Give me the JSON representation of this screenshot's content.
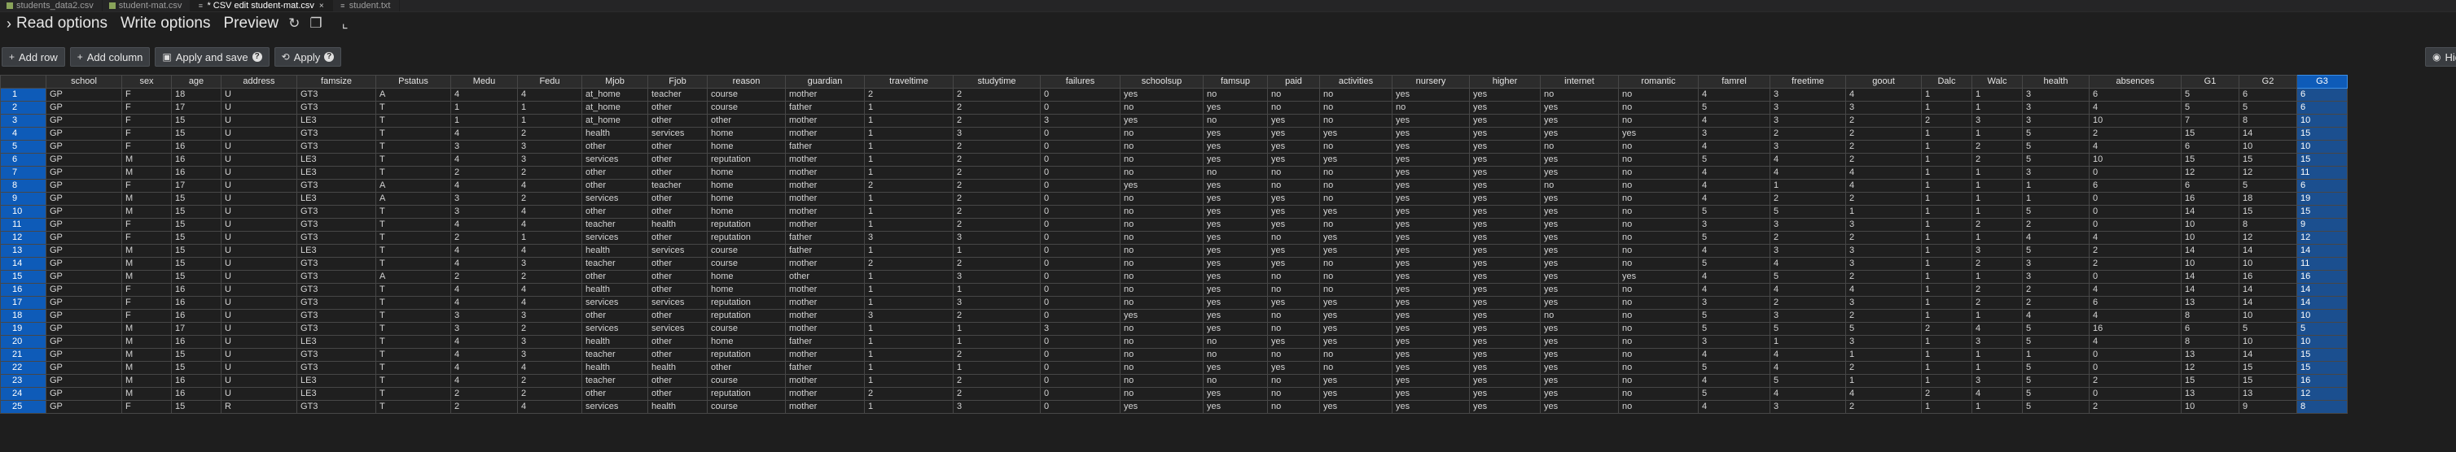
{
  "tabs": [
    {
      "label": "students_data2.csv",
      "icon": "csv-file-icon",
      "active": false
    },
    {
      "label": "student-mat.csv",
      "icon": "csv-file-icon",
      "active": false
    },
    {
      "label": "* CSV edit student-mat.csv",
      "icon": "lines-file-icon",
      "active": true,
      "close": "×"
    },
    {
      "label": "student.txt",
      "icon": "lines-file-icon",
      "active": false
    }
  ],
  "options": {
    "read": "Read options",
    "write": "Write options",
    "preview": "Preview",
    "chevron": "›"
  },
  "toolbar": {
    "add_row": "Add row",
    "add_column": "Add column",
    "apply_and_save": "Apply and save",
    "apply": "Apply",
    "hide": "Hid"
  },
  "grid": {
    "selected_column": "G3",
    "columns": [
      "school",
      "sex",
      "age",
      "address",
      "famsize",
      "Pstatus",
      "Medu",
      "Fedu",
      "Mjob",
      "Fjob",
      "reason",
      "guardian",
      "traveltime",
      "studytime",
      "failures",
      "schoolsup",
      "famsup",
      "paid",
      "activities",
      "nursery",
      "higher",
      "internet",
      "romantic",
      "famrel",
      "freetime",
      "goout",
      "Dalc",
      "Walc",
      "health",
      "absences",
      "G1",
      "G2",
      "G3"
    ],
    "rows": [
      [
        "1",
        "GP",
        "F",
        "18",
        "U",
        "GT3",
        "A",
        "4",
        "4",
        "at_home",
        "teacher",
        "course",
        "mother",
        "2",
        "2",
        "0",
        "yes",
        "no",
        "no",
        "no",
        "yes",
        "yes",
        "no",
        "no",
        "4",
        "3",
        "4",
        "1",
        "1",
        "3",
        "6",
        "5",
        "6",
        "6"
      ],
      [
        "2",
        "GP",
        "F",
        "17",
        "U",
        "GT3",
        "T",
        "1",
        "1",
        "at_home",
        "other",
        "course",
        "father",
        "1",
        "2",
        "0",
        "no",
        "yes",
        "no",
        "no",
        "no",
        "yes",
        "yes",
        "no",
        "5",
        "3",
        "3",
        "1",
        "1",
        "3",
        "4",
        "5",
        "5",
        "6"
      ],
      [
        "3",
        "GP",
        "F",
        "15",
        "U",
        "LE3",
        "T",
        "1",
        "1",
        "at_home",
        "other",
        "other",
        "mother",
        "1",
        "2",
        "3",
        "yes",
        "no",
        "yes",
        "no",
        "yes",
        "yes",
        "yes",
        "no",
        "4",
        "3",
        "2",
        "2",
        "3",
        "3",
        "10",
        "7",
        "8",
        "10"
      ],
      [
        "4",
        "GP",
        "F",
        "15",
        "U",
        "GT3",
        "T",
        "4",
        "2",
        "health",
        "services",
        "home",
        "mother",
        "1",
        "3",
        "0",
        "no",
        "yes",
        "yes",
        "yes",
        "yes",
        "yes",
        "yes",
        "yes",
        "3",
        "2",
        "2",
        "1",
        "1",
        "5",
        "2",
        "15",
        "14",
        "15"
      ],
      [
        "5",
        "GP",
        "F",
        "16",
        "U",
        "GT3",
        "T",
        "3",
        "3",
        "other",
        "other",
        "home",
        "father",
        "1",
        "2",
        "0",
        "no",
        "yes",
        "yes",
        "no",
        "yes",
        "yes",
        "no",
        "no",
        "4",
        "3",
        "2",
        "1",
        "2",
        "5",
        "4",
        "6",
        "10",
        "10"
      ],
      [
        "6",
        "GP",
        "M",
        "16",
        "U",
        "LE3",
        "T",
        "4",
        "3",
        "services",
        "other",
        "reputation",
        "mother",
        "1",
        "2",
        "0",
        "no",
        "yes",
        "yes",
        "yes",
        "yes",
        "yes",
        "yes",
        "no",
        "5",
        "4",
        "2",
        "1",
        "2",
        "5",
        "10",
        "15",
        "15",
        "15"
      ],
      [
        "7",
        "GP",
        "M",
        "16",
        "U",
        "LE3",
        "T",
        "2",
        "2",
        "other",
        "other",
        "home",
        "mother",
        "1",
        "2",
        "0",
        "no",
        "no",
        "no",
        "no",
        "yes",
        "yes",
        "yes",
        "no",
        "4",
        "4",
        "4",
        "1",
        "1",
        "3",
        "0",
        "12",
        "12",
        "11"
      ],
      [
        "8",
        "GP",
        "F",
        "17",
        "U",
        "GT3",
        "A",
        "4",
        "4",
        "other",
        "teacher",
        "home",
        "mother",
        "2",
        "2",
        "0",
        "yes",
        "yes",
        "no",
        "no",
        "yes",
        "yes",
        "no",
        "no",
        "4",
        "1",
        "4",
        "1",
        "1",
        "1",
        "6",
        "6",
        "5",
        "6"
      ],
      [
        "9",
        "GP",
        "M",
        "15",
        "U",
        "LE3",
        "A",
        "3",
        "2",
        "services",
        "other",
        "home",
        "mother",
        "1",
        "2",
        "0",
        "no",
        "yes",
        "yes",
        "no",
        "yes",
        "yes",
        "yes",
        "no",
        "4",
        "2",
        "2",
        "1",
        "1",
        "1",
        "0",
        "16",
        "18",
        "19"
      ],
      [
        "10",
        "GP",
        "M",
        "15",
        "U",
        "GT3",
        "T",
        "3",
        "4",
        "other",
        "other",
        "home",
        "mother",
        "1",
        "2",
        "0",
        "no",
        "yes",
        "yes",
        "yes",
        "yes",
        "yes",
        "yes",
        "no",
        "5",
        "5",
        "1",
        "1",
        "1",
        "5",
        "0",
        "14",
        "15",
        "15"
      ],
      [
        "11",
        "GP",
        "F",
        "15",
        "U",
        "GT3",
        "T",
        "4",
        "4",
        "teacher",
        "health",
        "reputation",
        "mother",
        "1",
        "2",
        "0",
        "no",
        "yes",
        "yes",
        "no",
        "yes",
        "yes",
        "yes",
        "no",
        "3",
        "3",
        "3",
        "1",
        "2",
        "2",
        "0",
        "10",
        "8",
        "9"
      ],
      [
        "12",
        "GP",
        "F",
        "15",
        "U",
        "GT3",
        "T",
        "2",
        "1",
        "services",
        "other",
        "reputation",
        "father",
        "3",
        "3",
        "0",
        "no",
        "yes",
        "no",
        "yes",
        "yes",
        "yes",
        "yes",
        "no",
        "5",
        "2",
        "2",
        "1",
        "1",
        "4",
        "4",
        "10",
        "12",
        "12"
      ],
      [
        "13",
        "GP",
        "M",
        "15",
        "U",
        "LE3",
        "T",
        "4",
        "4",
        "health",
        "services",
        "course",
        "father",
        "1",
        "1",
        "0",
        "no",
        "yes",
        "yes",
        "yes",
        "yes",
        "yes",
        "yes",
        "no",
        "4",
        "3",
        "3",
        "1",
        "3",
        "5",
        "2",
        "14",
        "14",
        "14"
      ],
      [
        "14",
        "GP",
        "M",
        "15",
        "U",
        "GT3",
        "T",
        "4",
        "3",
        "teacher",
        "other",
        "course",
        "mother",
        "2",
        "2",
        "0",
        "no",
        "yes",
        "yes",
        "no",
        "yes",
        "yes",
        "yes",
        "no",
        "5",
        "4",
        "3",
        "1",
        "2",
        "3",
        "2",
        "10",
        "10",
        "11"
      ],
      [
        "15",
        "GP",
        "M",
        "15",
        "U",
        "GT3",
        "A",
        "2",
        "2",
        "other",
        "other",
        "home",
        "other",
        "1",
        "3",
        "0",
        "no",
        "yes",
        "no",
        "no",
        "yes",
        "yes",
        "yes",
        "yes",
        "4",
        "5",
        "2",
        "1",
        "1",
        "3",
        "0",
        "14",
        "16",
        "16"
      ],
      [
        "16",
        "GP",
        "F",
        "16",
        "U",
        "GT3",
        "T",
        "4",
        "4",
        "health",
        "other",
        "home",
        "mother",
        "1",
        "1",
        "0",
        "no",
        "yes",
        "no",
        "no",
        "yes",
        "yes",
        "yes",
        "no",
        "4",
        "4",
        "4",
        "1",
        "2",
        "2",
        "4",
        "14",
        "14",
        "14"
      ],
      [
        "17",
        "GP",
        "F",
        "16",
        "U",
        "GT3",
        "T",
        "4",
        "4",
        "services",
        "services",
        "reputation",
        "mother",
        "1",
        "3",
        "0",
        "no",
        "yes",
        "yes",
        "yes",
        "yes",
        "yes",
        "yes",
        "no",
        "3",
        "2",
        "3",
        "1",
        "2",
        "2",
        "6",
        "13",
        "14",
        "14"
      ],
      [
        "18",
        "GP",
        "F",
        "16",
        "U",
        "GT3",
        "T",
        "3",
        "3",
        "other",
        "other",
        "reputation",
        "mother",
        "3",
        "2",
        "0",
        "yes",
        "yes",
        "no",
        "yes",
        "yes",
        "yes",
        "no",
        "no",
        "5",
        "3",
        "2",
        "1",
        "1",
        "4",
        "4",
        "8",
        "10",
        "10"
      ],
      [
        "19",
        "GP",
        "M",
        "17",
        "U",
        "GT3",
        "T",
        "3",
        "2",
        "services",
        "services",
        "course",
        "mother",
        "1",
        "1",
        "3",
        "no",
        "yes",
        "no",
        "yes",
        "yes",
        "yes",
        "yes",
        "no",
        "5",
        "5",
        "5",
        "2",
        "4",
        "5",
        "16",
        "6",
        "5",
        "5"
      ],
      [
        "20",
        "GP",
        "M",
        "16",
        "U",
        "LE3",
        "T",
        "4",
        "3",
        "health",
        "other",
        "home",
        "father",
        "1",
        "1",
        "0",
        "no",
        "no",
        "yes",
        "yes",
        "yes",
        "yes",
        "yes",
        "no",
        "3",
        "1",
        "3",
        "1",
        "3",
        "5",
        "4",
        "8",
        "10",
        "10"
      ],
      [
        "21",
        "GP",
        "M",
        "15",
        "U",
        "GT3",
        "T",
        "4",
        "3",
        "teacher",
        "other",
        "reputation",
        "mother",
        "1",
        "2",
        "0",
        "no",
        "no",
        "no",
        "no",
        "yes",
        "yes",
        "yes",
        "no",
        "4",
        "4",
        "1",
        "1",
        "1",
        "1",
        "0",
        "13",
        "14",
        "15"
      ],
      [
        "22",
        "GP",
        "M",
        "15",
        "U",
        "GT3",
        "T",
        "4",
        "4",
        "health",
        "health",
        "other",
        "father",
        "1",
        "1",
        "0",
        "no",
        "yes",
        "yes",
        "no",
        "yes",
        "yes",
        "yes",
        "no",
        "5",
        "4",
        "2",
        "1",
        "1",
        "5",
        "0",
        "12",
        "15",
        "15"
      ],
      [
        "23",
        "GP",
        "M",
        "16",
        "U",
        "LE3",
        "T",
        "4",
        "2",
        "teacher",
        "other",
        "course",
        "mother",
        "1",
        "2",
        "0",
        "no",
        "no",
        "no",
        "yes",
        "yes",
        "yes",
        "yes",
        "no",
        "4",
        "5",
        "1",
        "1",
        "3",
        "5",
        "2",
        "15",
        "15",
        "16"
      ],
      [
        "24",
        "GP",
        "M",
        "16",
        "U",
        "LE3",
        "T",
        "2",
        "2",
        "other",
        "other",
        "reputation",
        "mother",
        "2",
        "2",
        "0",
        "no",
        "yes",
        "no",
        "yes",
        "yes",
        "yes",
        "yes",
        "no",
        "5",
        "4",
        "4",
        "2",
        "4",
        "5",
        "0",
        "13",
        "13",
        "12"
      ],
      [
        "25",
        "GP",
        "F",
        "15",
        "R",
        "GT3",
        "T",
        "2",
        "4",
        "services",
        "health",
        "course",
        "mother",
        "1",
        "3",
        "0",
        "yes",
        "yes",
        "no",
        "yes",
        "yes",
        "yes",
        "yes",
        "no",
        "4",
        "3",
        "2",
        "1",
        "1",
        "5",
        "2",
        "10",
        "9",
        "8"
      ]
    ]
  }
}
